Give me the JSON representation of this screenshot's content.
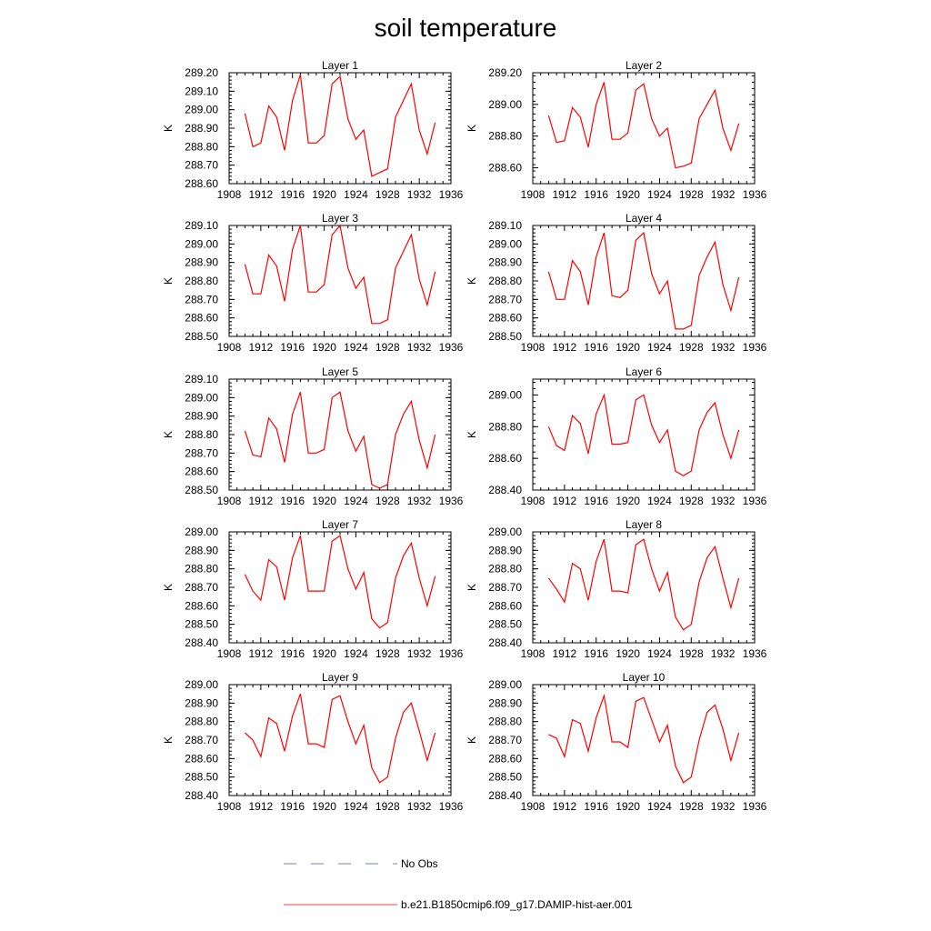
{
  "page_title": "soil temperature",
  "legend": {
    "no_obs_label": "No Obs",
    "no_obs_color": "#7b7bc0",
    "model_label": "b.e21.B1850cmip6.f09_g17.DAMIP-hist-aer.001",
    "model_color": "#ff0000"
  },
  "chart_data": [
    {
      "type": "line",
      "title": "Layer 1",
      "ylabel": "K",
      "xlim": [
        1908,
        1936
      ],
      "ylim": [
        288.6,
        289.2
      ],
      "x_ticks": [
        "1908",
        "1912",
        "1916",
        "1920",
        "1924",
        "1928",
        "1932",
        "1936"
      ],
      "y_ticks": [
        "288.60",
        "288.70",
        "288.80",
        "288.90",
        "289.00",
        "289.10",
        "289.20"
      ],
      "x": [
        1910,
        1911,
        1912,
        1913,
        1914,
        1915,
        1916,
        1917,
        1918,
        1919,
        1920,
        1921,
        1922,
        1923,
        1924,
        1925,
        1926,
        1927,
        1928,
        1929,
        1930,
        1931,
        1932,
        1933,
        1934
      ],
      "series": [
        {
          "name": "b.e21.B1850cmip6.f09_g17.DAMIP-hist-aer.001",
          "color": "#ff0000",
          "values": [
            288.98,
            288.8,
            288.82,
            289.02,
            288.96,
            288.78,
            289.05,
            289.19,
            288.82,
            288.82,
            288.86,
            289.14,
            289.18,
            288.95,
            288.84,
            288.89,
            288.64,
            288.66,
            288.68,
            288.96,
            289.05,
            289.14,
            288.89,
            288.76,
            288.93
          ]
        }
      ]
    },
    {
      "type": "line",
      "title": "Layer 2",
      "ylabel": "K",
      "xlim": [
        1908,
        1936
      ],
      "ylim": [
        288.5,
        289.2
      ],
      "x_ticks": [
        "1908",
        "1912",
        "1916",
        "1920",
        "1924",
        "1928",
        "1932",
        "1936"
      ],
      "y_ticks": [
        "288.60",
        "288.80",
        "289.00",
        "289.20"
      ],
      "x": [
        1910,
        1911,
        1912,
        1913,
        1914,
        1915,
        1916,
        1917,
        1918,
        1919,
        1920,
        1921,
        1922,
        1923,
        1924,
        1925,
        1926,
        1927,
        1928,
        1929,
        1930,
        1931,
        1932,
        1933,
        1934
      ],
      "series": [
        {
          "name": "b.e21.B1850cmip6.f09_g17.DAMIP-hist-aer.001",
          "color": "#ff0000",
          "values": [
            288.93,
            288.76,
            288.77,
            288.98,
            288.92,
            288.73,
            289.0,
            289.14,
            288.78,
            288.78,
            288.82,
            289.09,
            289.13,
            288.91,
            288.8,
            288.85,
            288.6,
            288.61,
            288.63,
            288.91,
            289.0,
            289.09,
            288.85,
            288.71,
            288.88
          ]
        }
      ]
    },
    {
      "type": "line",
      "title": "Layer 3",
      "ylabel": "K",
      "xlim": [
        1908,
        1936
      ],
      "ylim": [
        288.5,
        289.1
      ],
      "x_ticks": [
        "1908",
        "1912",
        "1916",
        "1920",
        "1924",
        "1928",
        "1932",
        "1936"
      ],
      "y_ticks": [
        "288.50",
        "288.60",
        "288.70",
        "288.80",
        "288.90",
        "289.00",
        "289.10"
      ],
      "x": [
        1910,
        1911,
        1912,
        1913,
        1914,
        1915,
        1916,
        1917,
        1918,
        1919,
        1920,
        1921,
        1922,
        1923,
        1924,
        1925,
        1926,
        1927,
        1928,
        1929,
        1930,
        1931,
        1932,
        1933,
        1934
      ],
      "series": [
        {
          "name": "b.e21.B1850cmip6.f09_g17.DAMIP-hist-aer.001",
          "color": "#ff0000",
          "values": [
            288.89,
            288.73,
            288.73,
            288.94,
            288.88,
            288.69,
            288.97,
            289.1,
            288.74,
            288.74,
            288.78,
            289.05,
            289.1,
            288.87,
            288.76,
            288.82,
            288.57,
            288.57,
            288.59,
            288.87,
            288.96,
            289.05,
            288.81,
            288.67,
            288.85
          ]
        }
      ]
    },
    {
      "type": "line",
      "title": "Layer 4",
      "ylabel": "K",
      "xlim": [
        1908,
        1936
      ],
      "ylim": [
        288.5,
        289.1
      ],
      "x_ticks": [
        "1908",
        "1912",
        "1916",
        "1920",
        "1924",
        "1928",
        "1932",
        "1936"
      ],
      "y_ticks": [
        "288.50",
        "288.60",
        "288.70",
        "288.80",
        "288.90",
        "289.00",
        "289.10"
      ],
      "x": [
        1910,
        1911,
        1912,
        1913,
        1914,
        1915,
        1916,
        1917,
        1918,
        1919,
        1920,
        1921,
        1922,
        1923,
        1924,
        1925,
        1926,
        1927,
        1928,
        1929,
        1930,
        1931,
        1932,
        1933,
        1934
      ],
      "series": [
        {
          "name": "b.e21.B1850cmip6.f09_g17.DAMIP-hist-aer.001",
          "color": "#ff0000",
          "values": [
            288.85,
            288.7,
            288.7,
            288.91,
            288.85,
            288.67,
            288.93,
            289.06,
            288.72,
            288.71,
            288.75,
            289.02,
            289.06,
            288.84,
            288.73,
            288.8,
            288.54,
            288.54,
            288.56,
            288.83,
            288.93,
            289.01,
            288.78,
            288.64,
            288.82
          ]
        }
      ]
    },
    {
      "type": "line",
      "title": "Layer 5",
      "ylabel": "K",
      "xlim": [
        1908,
        1936
      ],
      "ylim": [
        288.5,
        289.1
      ],
      "x_ticks": [
        "1908",
        "1912",
        "1916",
        "1920",
        "1924",
        "1928",
        "1932",
        "1936"
      ],
      "y_ticks": [
        "288.50",
        "288.60",
        "288.70",
        "288.80",
        "288.90",
        "289.00",
        "289.10"
      ],
      "x": [
        1910,
        1911,
        1912,
        1913,
        1914,
        1915,
        1916,
        1917,
        1918,
        1919,
        1920,
        1921,
        1922,
        1923,
        1924,
        1925,
        1926,
        1927,
        1928,
        1929,
        1930,
        1931,
        1932,
        1933,
        1934
      ],
      "series": [
        {
          "name": "b.e21.B1850cmip6.f09_g17.DAMIP-hist-aer.001",
          "color": "#ff0000",
          "values": [
            288.82,
            288.69,
            288.68,
            288.89,
            288.83,
            288.65,
            288.91,
            289.03,
            288.7,
            288.7,
            288.72,
            289.0,
            289.03,
            288.82,
            288.71,
            288.79,
            288.53,
            288.51,
            288.53,
            288.8,
            288.91,
            288.98,
            288.77,
            288.62,
            288.8
          ]
        }
      ]
    },
    {
      "type": "line",
      "title": "Layer 6",
      "ylabel": "K",
      "xlim": [
        1908,
        1936
      ],
      "ylim": [
        288.4,
        289.1
      ],
      "x_ticks": [
        "1908",
        "1912",
        "1916",
        "1920",
        "1924",
        "1928",
        "1932",
        "1936"
      ],
      "y_ticks": [
        "288.40",
        "288.60",
        "288.80",
        "289.00"
      ],
      "x": [
        1910,
        1911,
        1912,
        1913,
        1914,
        1915,
        1916,
        1917,
        1918,
        1919,
        1920,
        1921,
        1922,
        1923,
        1924,
        1925,
        1926,
        1927,
        1928,
        1929,
        1930,
        1931,
        1932,
        1933,
        1934
      ],
      "series": [
        {
          "name": "b.e21.B1850cmip6.f09_g17.DAMIP-hist-aer.001",
          "color": "#ff0000",
          "values": [
            288.8,
            288.68,
            288.65,
            288.87,
            288.82,
            288.63,
            288.88,
            289.0,
            288.69,
            288.69,
            288.7,
            288.97,
            289.0,
            288.81,
            288.7,
            288.78,
            288.52,
            288.49,
            288.52,
            288.78,
            288.89,
            288.95,
            288.75,
            288.6,
            288.78
          ]
        }
      ]
    },
    {
      "type": "line",
      "title": "Layer 7",
      "ylabel": "K",
      "xlim": [
        1908,
        1936
      ],
      "ylim": [
        288.4,
        289.0
      ],
      "x_ticks": [
        "1908",
        "1912",
        "1916",
        "1920",
        "1924",
        "1928",
        "1932",
        "1936"
      ],
      "y_ticks": [
        "288.40",
        "288.50",
        "288.60",
        "288.70",
        "288.80",
        "288.90",
        "289.00"
      ],
      "x": [
        1910,
        1911,
        1912,
        1913,
        1914,
        1915,
        1916,
        1917,
        1918,
        1919,
        1920,
        1921,
        1922,
        1923,
        1924,
        1925,
        1926,
        1927,
        1928,
        1929,
        1930,
        1931,
        1932,
        1933,
        1934
      ],
      "series": [
        {
          "name": "b.e21.B1850cmip6.f09_g17.DAMIP-hist-aer.001",
          "color": "#ff0000",
          "values": [
            288.77,
            288.68,
            288.63,
            288.85,
            288.81,
            288.63,
            288.86,
            288.98,
            288.68,
            288.68,
            288.68,
            288.95,
            288.98,
            288.8,
            288.69,
            288.78,
            288.53,
            288.48,
            288.51,
            288.75,
            288.87,
            288.94,
            288.75,
            288.6,
            288.76
          ]
        }
      ]
    },
    {
      "type": "line",
      "title": "Layer 8",
      "ylabel": "K",
      "xlim": [
        1908,
        1936
      ],
      "ylim": [
        288.4,
        289.0
      ],
      "x_ticks": [
        "1908",
        "1912",
        "1916",
        "1920",
        "1924",
        "1928",
        "1932",
        "1936"
      ],
      "y_ticks": [
        "288.40",
        "288.50",
        "288.60",
        "288.70",
        "288.80",
        "288.90",
        "289.00"
      ],
      "x": [
        1910,
        1911,
        1912,
        1913,
        1914,
        1915,
        1916,
        1917,
        1918,
        1919,
        1920,
        1921,
        1922,
        1923,
        1924,
        1925,
        1926,
        1927,
        1928,
        1929,
        1930,
        1931,
        1932,
        1933,
        1934
      ],
      "series": [
        {
          "name": "b.e21.B1850cmip6.f09_g17.DAMIP-hist-aer.001",
          "color": "#ff0000",
          "values": [
            288.75,
            288.69,
            288.62,
            288.83,
            288.8,
            288.63,
            288.84,
            288.96,
            288.68,
            288.68,
            288.67,
            288.93,
            288.96,
            288.8,
            288.68,
            288.78,
            288.54,
            288.47,
            288.5,
            288.73,
            288.86,
            288.92,
            288.75,
            288.59,
            288.75
          ]
        }
      ]
    },
    {
      "type": "line",
      "title": "Layer 9",
      "ylabel": "K",
      "xlim": [
        1908,
        1936
      ],
      "ylim": [
        288.4,
        289.0
      ],
      "x_ticks": [
        "1908",
        "1912",
        "1916",
        "1920",
        "1924",
        "1928",
        "1932",
        "1936"
      ],
      "y_ticks": [
        "288.40",
        "288.50",
        "288.60",
        "288.70",
        "288.80",
        "288.90",
        "289.00"
      ],
      "x": [
        1910,
        1911,
        1912,
        1913,
        1914,
        1915,
        1916,
        1917,
        1918,
        1919,
        1920,
        1921,
        1922,
        1923,
        1924,
        1925,
        1926,
        1927,
        1928,
        1929,
        1930,
        1931,
        1932,
        1933,
        1934
      ],
      "series": [
        {
          "name": "b.e21.B1850cmip6.f09_g17.DAMIP-hist-aer.001",
          "color": "#ff0000",
          "values": [
            288.74,
            288.7,
            288.61,
            288.82,
            288.79,
            288.64,
            288.83,
            288.95,
            288.68,
            288.68,
            288.66,
            288.92,
            288.94,
            288.8,
            288.68,
            288.78,
            288.55,
            288.47,
            288.5,
            288.71,
            288.85,
            288.9,
            288.75,
            288.59,
            288.74
          ]
        }
      ]
    },
    {
      "type": "line",
      "title": "Layer 10",
      "ylabel": "K",
      "xlim": [
        1908,
        1936
      ],
      "ylim": [
        288.4,
        289.0
      ],
      "x_ticks": [
        "1908",
        "1912",
        "1916",
        "1920",
        "1924",
        "1928",
        "1932",
        "1936"
      ],
      "y_ticks": [
        "288.40",
        "288.50",
        "288.60",
        "288.70",
        "288.80",
        "288.90",
        "289.00"
      ],
      "x": [
        1910,
        1911,
        1912,
        1913,
        1914,
        1915,
        1916,
        1917,
        1918,
        1919,
        1920,
        1921,
        1922,
        1923,
        1924,
        1925,
        1926,
        1927,
        1928,
        1929,
        1930,
        1931,
        1932,
        1933,
        1934
      ],
      "series": [
        {
          "name": "b.e21.B1850cmip6.f09_g17.DAMIP-hist-aer.001",
          "color": "#ff0000",
          "values": [
            288.73,
            288.71,
            288.61,
            288.81,
            288.79,
            288.64,
            288.82,
            288.94,
            288.69,
            288.69,
            288.66,
            288.91,
            288.93,
            288.81,
            288.69,
            288.78,
            288.56,
            288.47,
            288.5,
            288.7,
            288.85,
            288.89,
            288.76,
            288.59,
            288.74
          ]
        }
      ]
    }
  ]
}
